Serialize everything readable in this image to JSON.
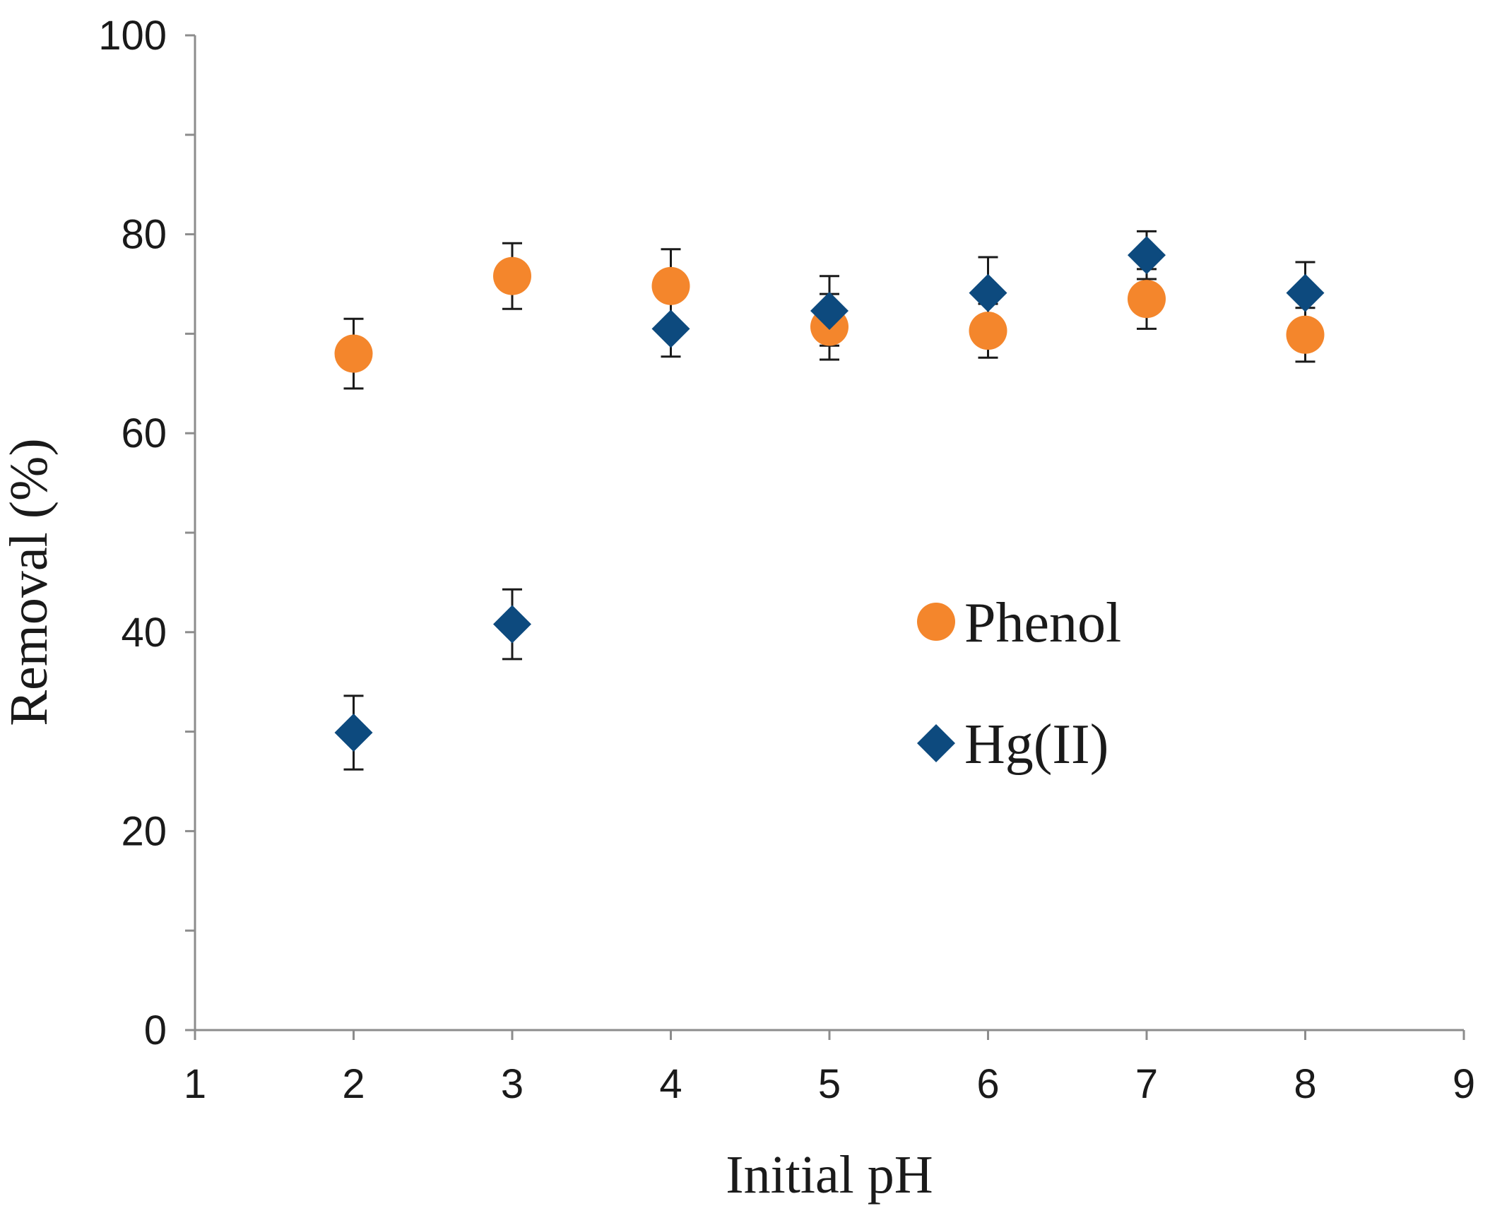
{
  "chart_data": {
    "type": "scatter",
    "title": "",
    "xlabel": "Initial pH",
    "ylabel": "Removal (%)",
    "xlim": [
      1,
      9
    ],
    "ylim": [
      0,
      100
    ],
    "xticks": [
      1,
      2,
      3,
      4,
      5,
      6,
      7,
      8,
      9
    ],
    "yticks": [
      0,
      20,
      40,
      60,
      80,
      100
    ],
    "yminor_ticks": [
      10,
      30,
      50,
      70,
      90
    ],
    "grid": false,
    "legend_position": "center-right",
    "series": [
      {
        "name": "Phenol",
        "marker": "circle",
        "color": "#F4862C",
        "points": [
          {
            "x": 2,
            "y": 68.0,
            "err": 3.5
          },
          {
            "x": 3,
            "y": 75.8,
            "err": 3.3
          },
          {
            "x": 4,
            "y": 74.8,
            "err": 3.7
          },
          {
            "x": 5,
            "y": 70.7,
            "err": 3.3
          },
          {
            "x": 6,
            "y": 70.3,
            "err": 2.7
          },
          {
            "x": 7,
            "y": 73.5,
            "err": 3.0
          },
          {
            "x": 8,
            "y": 69.9,
            "err": 2.7
          }
        ]
      },
      {
        "name": "Hg(II)",
        "marker": "diamond",
        "color": "#0D4A7E",
        "points": [
          {
            "x": 2,
            "y": 29.9,
            "err": 3.7
          },
          {
            "x": 3,
            "y": 40.8,
            "err": 3.5
          },
          {
            "x": 4,
            "y": 70.5,
            "err": 2.8
          },
          {
            "x": 5,
            "y": 72.3,
            "err": 3.5
          },
          {
            "x": 6,
            "y": 74.1,
            "err": 3.6
          },
          {
            "x": 7,
            "y": 77.9,
            "err": 2.4
          },
          {
            "x": 8,
            "y": 74.1,
            "err": 3.1
          }
        ]
      }
    ]
  }
}
